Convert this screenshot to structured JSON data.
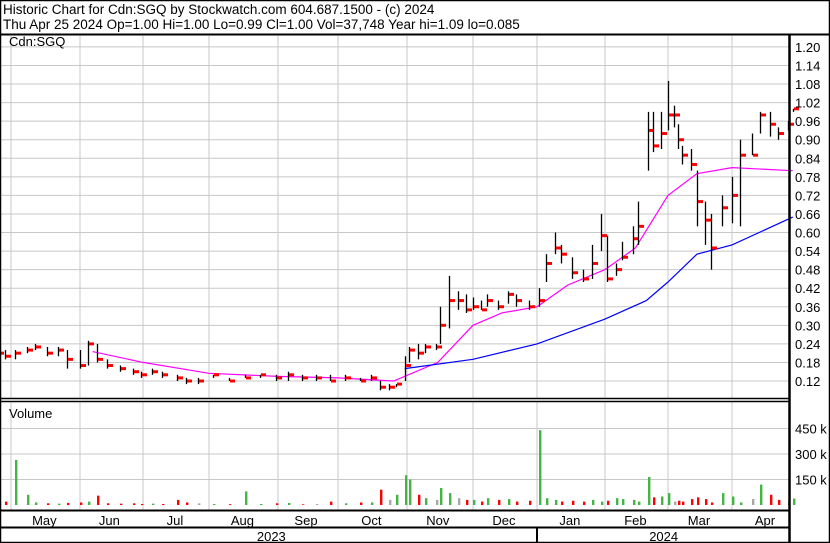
{
  "header": {
    "title_line": "Historic Chart for Cdn:SGQ by Stockwatch.com 604.687.1500 - (c) 2024",
    "quote_line": "Thu Apr 25 2024  Op=1.00  Hi=1.00  Lo=0.99  Cl=1.00  Vol=37,748  Year hi=1.09  lo=0.085"
  },
  "chart_data": {
    "type": "ohlc",
    "symbol_label": "Cdn:SGQ",
    "volume_label": "Volume",
    "price_ticks": [
      "1.20",
      "1.14",
      "1.08",
      "1.02",
      "0.96",
      "0.90",
      "0.84",
      "0.78",
      "0.72",
      "0.66",
      "0.60",
      "0.54",
      "0.48",
      "0.42",
      "0.36",
      "0.30",
      "0.24",
      "0.18",
      "0.12"
    ],
    "price_range": [
      0.06,
      1.23
    ],
    "volume_ticks": [
      "450 k",
      "300 k",
      "150 k"
    ],
    "volume_range_k": [
      0,
      560
    ],
    "months": [
      {
        "label": "Apr",
        "date": "2023-04-12"
      },
      {
        "label": "May",
        "date": "2023-05-16"
      },
      {
        "label": "Jun",
        "date": "2023-06-15"
      },
      {
        "label": "Jul",
        "date": "2023-07-16"
      },
      {
        "label": "Aug",
        "date": "2023-08-16"
      },
      {
        "label": "Sep",
        "date": "2023-09-15"
      },
      {
        "label": "Oct",
        "date": "2023-10-16"
      },
      {
        "label": "Nov",
        "date": "2023-11-15"
      },
      {
        "label": "Dec",
        "date": "2023-12-16"
      },
      {
        "label": "Jan",
        "date": "2024-01-16"
      },
      {
        "label": "Feb",
        "date": "2024-02-15"
      },
      {
        "label": "Mar",
        "date": "2024-03-16"
      },
      {
        "label": "Apr",
        "date": "2024-04-14"
      }
    ],
    "years": [
      {
        "label": "2023",
        "date": "2023-08-29"
      },
      {
        "label": "2024",
        "date": "2024-02-28"
      }
    ],
    "colors": {
      "up": "#44b544",
      "down": "#ff0000",
      "unchanged": "#a8a8a8",
      "close_tick": "#ff0000",
      "ma_short": "#ff00ff",
      "ma_long": "#0000ff",
      "grid": "#c8c8c8"
    },
    "bars": [
      [
        "2023-04-20",
        0.25,
        0.21,
        0.23,
        30
      ],
      [
        "2023-04-25",
        0.24,
        0.2,
        0.21,
        15
      ],
      [
        "2023-04-28",
        0.22,
        0.19,
        0.2,
        20
      ],
      [
        "2023-05-03",
        0.22,
        0.19,
        0.21,
        265
      ],
      [
        "2023-05-08",
        0.23,
        0.21,
        0.22,
        60
      ],
      [
        "2023-05-12",
        0.24,
        0.22,
        0.23,
        15
      ],
      [
        "2023-05-17",
        0.23,
        0.2,
        0.21,
        10
      ],
      [
        "2023-05-22",
        0.23,
        0.2,
        0.22,
        8
      ],
      [
        "2023-05-26",
        0.22,
        0.16,
        0.19,
        12
      ],
      [
        "2023-06-01",
        0.22,
        0.16,
        0.17,
        15
      ],
      [
        "2023-06-05",
        0.25,
        0.17,
        0.24,
        20
      ],
      [
        "2023-06-09",
        0.24,
        0.18,
        0.19,
        55
      ],
      [
        "2023-06-14",
        0.19,
        0.16,
        0.17,
        10
      ],
      [
        "2023-06-20",
        0.17,
        0.15,
        0.16,
        8
      ],
      [
        "2023-06-26",
        0.16,
        0.14,
        0.15,
        10
      ],
      [
        "2023-06-30",
        0.15,
        0.13,
        0.14,
        6
      ],
      [
        "2023-07-05",
        0.16,
        0.14,
        0.15,
        8
      ],
      [
        "2023-07-10",
        0.15,
        0.13,
        0.14,
        6
      ],
      [
        "2023-07-17",
        0.14,
        0.12,
        0.13,
        30
      ],
      [
        "2023-07-21",
        0.13,
        0.11,
        0.12,
        15
      ],
      [
        "2023-07-27",
        0.13,
        0.11,
        0.12,
        10
      ],
      [
        "2023-08-03",
        0.14,
        0.13,
        0.14,
        6
      ],
      [
        "2023-08-10",
        0.13,
        0.12,
        0.12,
        5
      ],
      [
        "2023-08-17",
        0.14,
        0.13,
        0.13,
        80
      ],
      [
        "2023-08-24",
        0.14,
        0.13,
        0.14,
        6
      ],
      [
        "2023-08-31",
        0.14,
        0.12,
        0.13,
        10
      ],
      [
        "2023-09-06",
        0.15,
        0.12,
        0.14,
        12
      ],
      [
        "2023-09-13",
        0.14,
        0.12,
        0.13,
        4
      ],
      [
        "2023-09-20",
        0.14,
        0.12,
        0.13,
        6
      ],
      [
        "2023-09-27",
        0.14,
        0.12,
        0.12,
        20
      ],
      [
        "2023-10-04",
        0.14,
        0.12,
        0.13,
        10
      ],
      [
        "2023-10-11",
        0.13,
        0.12,
        0.12,
        15
      ],
      [
        "2023-10-16",
        0.14,
        0.12,
        0.13,
        15
      ],
      [
        "2023-10-20",
        0.12,
        0.09,
        0.1,
        90
      ],
      [
        "2023-10-24",
        0.11,
        0.09,
        0.1,
        30
      ],
      [
        "2023-10-27",
        0.11,
        0.1,
        0.11,
        60
      ],
      [
        "2023-10-31",
        0.2,
        0.12,
        0.17,
        175
      ],
      [
        "2023-11-02",
        0.23,
        0.18,
        0.22,
        150
      ],
      [
        "2023-11-06",
        0.24,
        0.19,
        0.21,
        60
      ],
      [
        "2023-11-09",
        0.24,
        0.21,
        0.23,
        40
      ],
      [
        "2023-11-14",
        0.24,
        0.22,
        0.23,
        30
      ],
      [
        "2023-11-16",
        0.36,
        0.24,
        0.3,
        100
      ],
      [
        "2023-11-20",
        0.46,
        0.29,
        0.38,
        70
      ],
      [
        "2023-11-24",
        0.41,
        0.35,
        0.38,
        40
      ],
      [
        "2023-11-28",
        0.4,
        0.34,
        0.35,
        30
      ],
      [
        "2023-12-01",
        0.39,
        0.35,
        0.36,
        30
      ],
      [
        "2023-12-05",
        0.38,
        0.35,
        0.35,
        20
      ],
      [
        "2023-12-08",
        0.4,
        0.36,
        0.38,
        40
      ],
      [
        "2023-12-13",
        0.38,
        0.35,
        0.36,
        30
      ],
      [
        "2023-12-18",
        0.41,
        0.37,
        0.4,
        35
      ],
      [
        "2023-12-22",
        0.4,
        0.36,
        0.38,
        20
      ],
      [
        "2023-12-28",
        0.38,
        0.35,
        0.36,
        25
      ],
      [
        "2024-01-02",
        0.42,
        0.36,
        0.38,
        440
      ],
      [
        "2024-01-05",
        0.53,
        0.44,
        0.5,
        40
      ],
      [
        "2024-01-09",
        0.6,
        0.53,
        0.55,
        30
      ],
      [
        "2024-01-12",
        0.56,
        0.5,
        0.53,
        20
      ],
      [
        "2024-01-17",
        0.52,
        0.45,
        0.47,
        25
      ],
      [
        "2024-01-22",
        0.48,
        0.44,
        0.45,
        20
      ],
      [
        "2024-01-26",
        0.56,
        0.45,
        0.5,
        30
      ],
      [
        "2024-01-30",
        0.66,
        0.54,
        0.59,
        20
      ],
      [
        "2024-02-02",
        0.59,
        0.44,
        0.45,
        25
      ],
      [
        "2024-02-06",
        0.5,
        0.46,
        0.48,
        40
      ],
      [
        "2024-02-09",
        0.57,
        0.51,
        0.52,
        35
      ],
      [
        "2024-02-14",
        0.62,
        0.53,
        0.58,
        30
      ],
      [
        "2024-02-16",
        0.7,
        0.56,
        0.62,
        20
      ],
      [
        "2024-02-21",
        0.99,
        0.8,
        0.93,
        165
      ],
      [
        "2024-02-23",
        0.99,
        0.86,
        0.88,
        45
      ],
      [
        "2024-02-27",
        0.99,
        0.87,
        0.92,
        50
      ],
      [
        "2024-03-01",
        1.09,
        0.93,
        0.98,
        70
      ],
      [
        "2024-03-04",
        1.01,
        0.94,
        0.98,
        20
      ],
      [
        "2024-03-06",
        0.95,
        0.87,
        0.9,
        25
      ],
      [
        "2024-03-08",
        0.88,
        0.82,
        0.85,
        20
      ],
      [
        "2024-03-12",
        0.87,
        0.8,
        0.82,
        35
      ],
      [
        "2024-03-15",
        0.8,
        0.62,
        0.7,
        45
      ],
      [
        "2024-03-19",
        0.7,
        0.56,
        0.64,
        35
      ],
      [
        "2024-03-22",
        0.66,
        0.48,
        0.55,
        15
      ],
      [
        "2024-03-27",
        0.72,
        0.62,
        0.68,
        70
      ],
      [
        "2024-04-01",
        0.78,
        0.63,
        0.72,
        50
      ],
      [
        "2024-04-04",
        0.9,
        0.62,
        0.85,
        15
      ],
      [
        "2024-04-09",
        0.92,
        0.85,
        0.85,
        35
      ],
      [
        "2024-04-12",
        0.99,
        0.92,
        0.98,
        120
      ],
      [
        "2024-04-16",
        0.99,
        0.91,
        0.95,
        60
      ],
      [
        "2024-04-19",
        0.94,
        0.9,
        0.92,
        30
      ],
      [
        "2024-04-23",
        0.96,
        0.93,
        0.95,
        20
      ],
      [
        "2024-04-25",
        1.0,
        0.99,
        1.0,
        38
      ]
    ],
    "ma_short": [
      [
        "2023-06-07",
        0.215
      ],
      [
        "2023-07-01",
        0.18
      ],
      [
        "2023-08-01",
        0.145
      ],
      [
        "2023-09-01",
        0.135
      ],
      [
        "2023-10-01",
        0.13
      ],
      [
        "2023-10-26",
        0.12
      ],
      [
        "2023-11-15",
        0.18
      ],
      [
        "2023-12-01",
        0.3
      ],
      [
        "2023-12-15",
        0.34
      ],
      [
        "2024-01-01",
        0.36
      ],
      [
        "2024-01-15",
        0.43
      ],
      [
        "2024-02-01",
        0.48
      ],
      [
        "2024-02-15",
        0.55
      ],
      [
        "2024-03-01",
        0.72
      ],
      [
        "2024-03-15",
        0.79
      ],
      [
        "2024-04-01",
        0.81
      ],
      [
        "2024-04-25",
        0.8
      ]
    ],
    "ma_long": [
      [
        "2023-10-31",
        0.16
      ],
      [
        "2023-12-01",
        0.19
      ],
      [
        "2024-01-01",
        0.24
      ],
      [
        "2024-02-01",
        0.32
      ],
      [
        "2024-02-20",
        0.38
      ],
      [
        "2024-03-01",
        0.44
      ],
      [
        "2024-03-15",
        0.53
      ],
      [
        "2024-04-01",
        0.56
      ],
      [
        "2024-04-25",
        0.65
      ]
    ]
  }
}
